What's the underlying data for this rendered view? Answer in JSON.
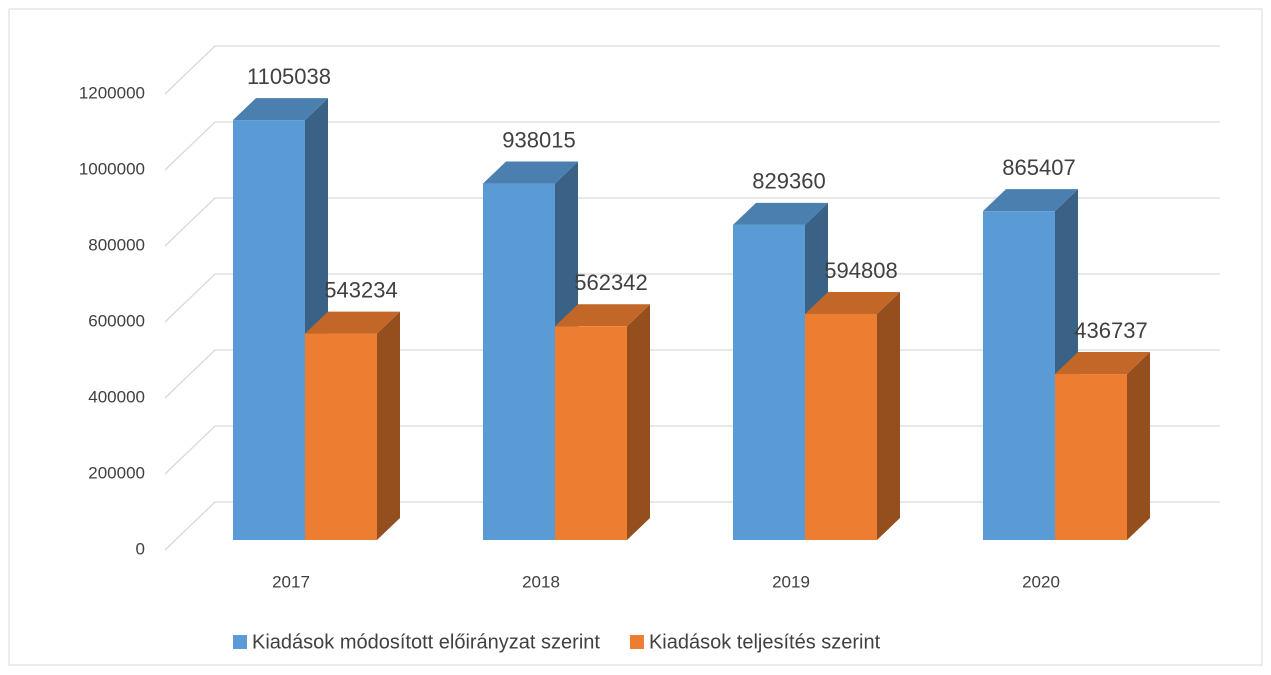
{
  "chart_data": {
    "type": "bar3d",
    "categories": [
      "2017",
      "2018",
      "2019",
      "2020"
    ],
    "series": [
      {
        "name": "Kiadások módosított előirányzat szerint",
        "color": "#5b9bd5",
        "values": [
          1105038,
          938015,
          829360,
          865407
        ]
      },
      {
        "name": "Kiadások teljesítés szerint",
        "color": "#ed7d31",
        "values": [
          543234,
          562342,
          594808,
          436737
        ]
      }
    ],
    "ylim": [
      0,
      1200000
    ],
    "yticks": [
      0,
      200000,
      400000,
      600000,
      800000,
      1000000,
      1200000
    ],
    "grid": true,
    "legend": "bottom"
  }
}
